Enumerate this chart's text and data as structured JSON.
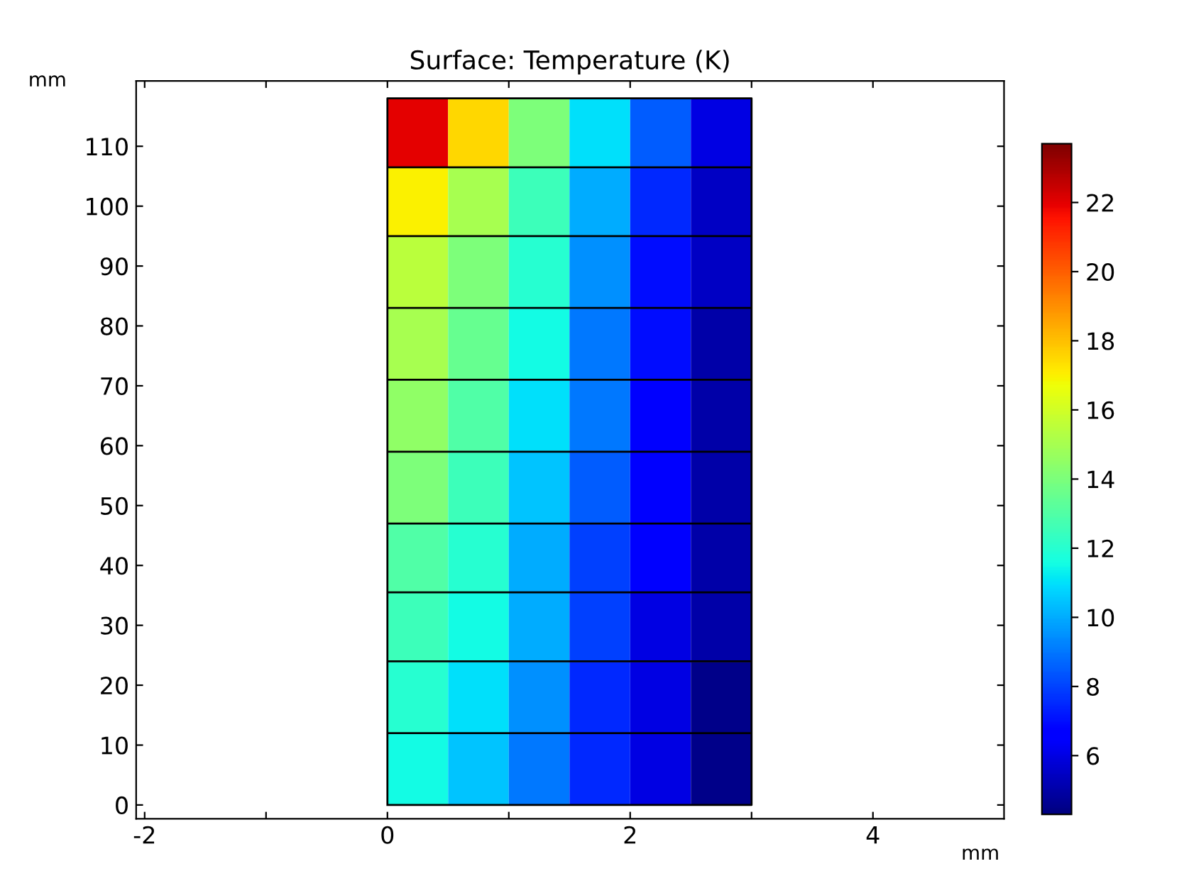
{
  "chart_data": {
    "type": "heatmap",
    "title": "Surface: Temperature (K)",
    "xlabel": "mm",
    "ylabel": "mm",
    "x": [
      0.25,
      0.75,
      1.25,
      1.75,
      2.25,
      2.75
    ],
    "y": [
      112.25,
      100.75,
      89,
      77,
      65,
      53,
      41.25,
      29.75,
      18,
      6
    ],
    "cells": [
      [
        22,
        17.5,
        14,
        11,
        8.5,
        6
      ],
      [
        17,
        15,
        12.5,
        10,
        7.5,
        5.5
      ],
      [
        15.5,
        14,
        12,
        9.5,
        7,
        5.5
      ],
      [
        15,
        13.5,
        11.5,
        9,
        7,
        5
      ],
      [
        14.5,
        13,
        11,
        9,
        6.5,
        5
      ],
      [
        14,
        12.5,
        10.5,
        8.5,
        6.5,
        5
      ],
      [
        13,
        12,
        10,
        8,
        6.5,
        5
      ],
      [
        12.5,
        11.5,
        10,
        8,
        6,
        5
      ],
      [
        12,
        11,
        9.5,
        7.5,
        6,
        4.5
      ],
      [
        11.5,
        10.5,
        9,
        7.5,
        6,
        4.5
      ]
    ],
    "xlim": [
      -2.07,
      5.08
    ],
    "ylim": [
      -2.3,
      120.9
    ],
    "xticks": [
      -2,
      {
        "value": -1,
        "label": null
      },
      0,
      {
        "value": 1,
        "label": null
      },
      2,
      {
        "value": 3,
        "label": null
      },
      4
    ],
    "yticks": [
      0,
      10,
      20,
      30,
      40,
      50,
      60,
      70,
      80,
      90,
      100,
      110
    ],
    "clim": [
      4.3,
      23.7
    ],
    "cticks": [
      6,
      8,
      10,
      12,
      14,
      16,
      18,
      20,
      22
    ],
    "ref_lines": [
      {
        "axis": "y",
        "value": 12,
        "color": "#000000"
      },
      {
        "axis": "y",
        "value": 24,
        "color": "#000000"
      },
      {
        "axis": "y",
        "value": 35.5,
        "color": "#000000"
      },
      {
        "axis": "y",
        "value": 47,
        "color": "#000000"
      },
      {
        "axis": "y",
        "value": 59,
        "color": "#000000"
      },
      {
        "axis": "y",
        "value": 71,
        "color": "#000000"
      },
      {
        "axis": "y",
        "value": 83,
        "color": "#000000"
      },
      {
        "axis": "y",
        "value": 95,
        "color": "#000000"
      },
      {
        "axis": "y",
        "value": 106.5,
        "color": "#000000"
      }
    ],
    "grid": false
  }
}
